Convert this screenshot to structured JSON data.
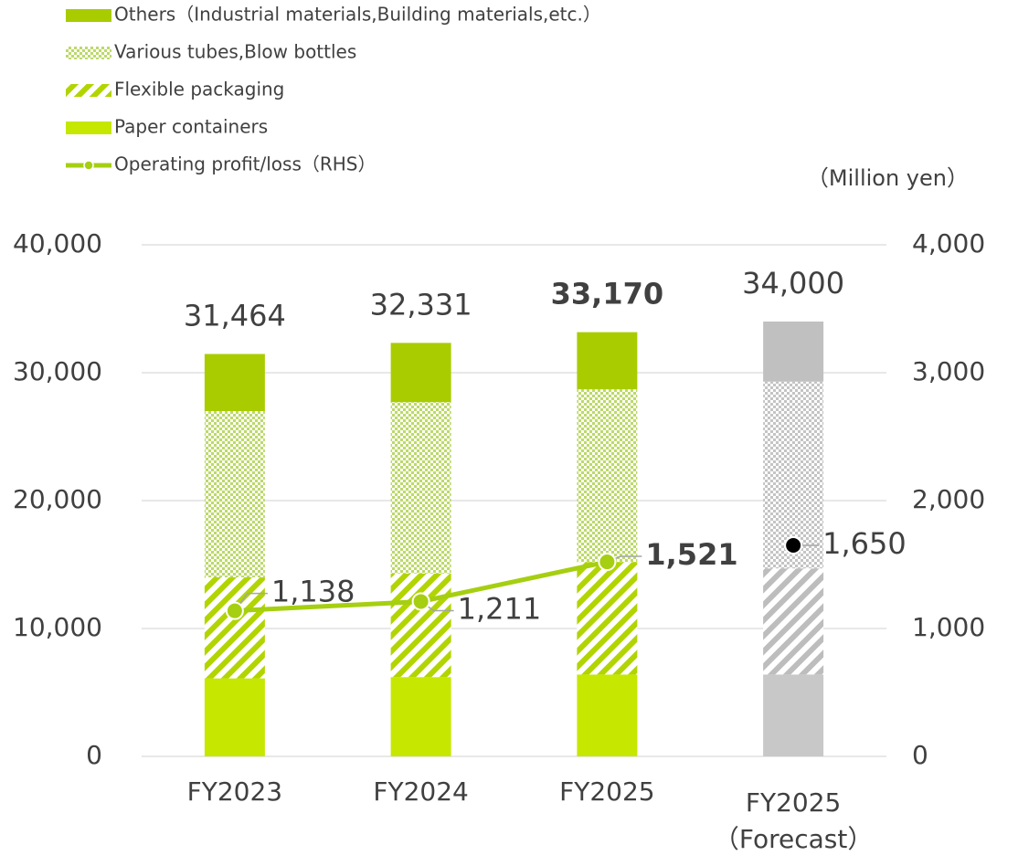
{
  "chart_data": {
    "type": "stacked-bar-line",
    "unit_label": "（Million yen）",
    "categories": [
      "FY2023",
      "FY2024",
      "FY2025",
      "FY2025"
    ],
    "forecast_label": "（Forecast）",
    "forecast_index": 3,
    "bold_index": 2,
    "series": [
      {
        "name": "Paper containers",
        "type": "bar",
        "pattern": "solid",
        "color": "#c6e700",
        "forecast_color": "#c8c8c8",
        "values": [
          6100,
          6200,
          6400,
          6400
        ]
      },
      {
        "name": "Flexible packaging",
        "type": "bar",
        "pattern": "hatch",
        "color": "#b2d400",
        "forecast_color": "#bdbdbd",
        "values": [
          7900,
          8100,
          8800,
          8300
        ]
      },
      {
        "name": "Various tubes,Blow bottles",
        "type": "bar",
        "pattern": "dots",
        "color": "#bcd96a",
        "forecast_color": "#c4c4c4",
        "values": [
          13000,
          13400,
          13500,
          14600
        ]
      },
      {
        "name": "Others（Industrial materials,Building materials,etc.）",
        "type": "bar",
        "pattern": "solid",
        "color": "#a9cc00",
        "forecast_color": "#c0c0c0",
        "values": [
          4464,
          4631,
          4470,
          4700
        ]
      },
      {
        "name": "Operating profit/loss（RHS）",
        "type": "line",
        "axis": "y2",
        "color": "#a5cf10",
        "forecast_color": "#000000",
        "values": [
          1138,
          1211,
          1521,
          1650
        ],
        "value_labels": [
          "1,138",
          "1,211",
          "1,521",
          "1,650"
        ]
      }
    ],
    "totals": [
      31464,
      32331,
      33170,
      34000
    ],
    "total_labels": [
      "31,464",
      "32,331",
      "33,170",
      "34,000"
    ],
    "ylim": [
      0,
      40000
    ],
    "yticks": [
      0,
      {
        "value": 10000,
        "label": "10,000"
      },
      {
        "value": 20000,
        "label": "20,000"
      },
      {
        "value": 30000,
        "label": "30,000"
      },
      {
        "value": 40000,
        "label": "40,000"
      }
    ],
    "y2lim": [
      0,
      4000
    ],
    "y2ticks": [
      0,
      {
        "value": 1000,
        "label": "1,000"
      },
      {
        "value": 2000,
        "label": "2,000"
      },
      {
        "value": 3000,
        "label": "3,000"
      },
      {
        "value": 4000,
        "label": "4,000"
      }
    ],
    "grid": true
  }
}
